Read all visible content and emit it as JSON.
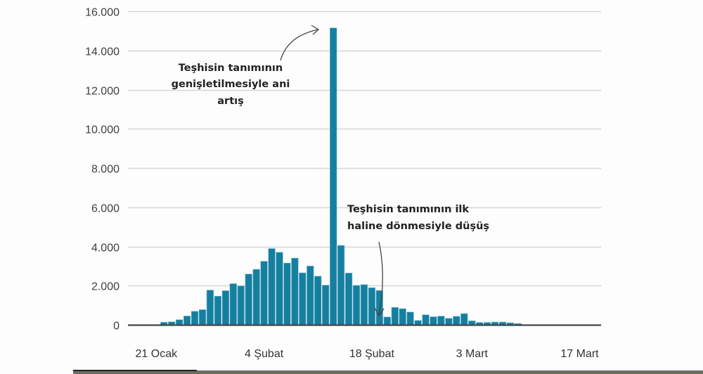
{
  "chart_data": {
    "type": "bar",
    "title": "",
    "xlabel": "",
    "ylabel": "",
    "ylim": [
      0,
      16000
    ],
    "y_ticks": [
      "0",
      "2.000",
      "4.000",
      "6.000",
      "8.000",
      "10.000",
      "12.000",
      "14.000",
      "16.000"
    ],
    "y_tick_values": [
      0,
      2000,
      4000,
      6000,
      8000,
      10000,
      12000,
      14000,
      16000
    ],
    "x_tick_labels": [
      "21 Ocak",
      "4 Şubat",
      "18 Şubat",
      "3 Mart",
      "17 Mart"
    ],
    "x_tick_day_index": [
      0,
      14,
      28,
      41,
      55
    ],
    "grid": true,
    "bar_color": "#157fa0",
    "start_date_label": "21 Ocak",
    "values": [
      0,
      130,
      150,
      260,
      450,
      690,
      770,
      1770,
      1460,
      1740,
      2100,
      1980,
      2590,
      2830,
      3240,
      3890,
      3700,
      3150,
      3400,
      2650,
      3000,
      2480,
      2020,
      15150,
      4050,
      2640,
      2010,
      2050,
      1890,
      1750,
      400,
      890,
      820,
      650,
      220,
      510,
      410,
      440,
      330,
      430,
      570,
      200,
      120,
      120,
      140,
      140,
      100,
      60,
      0,
      0,
      0,
      0,
      0,
      0,
      0,
      0,
      0,
      0
    ],
    "annotations": [
      {
        "lines": [
          "Teşhisin tanımının",
          "genişletilmesiyle ani",
          "artış"
        ],
        "points_to_day": 23
      },
      {
        "lines": [
          "Teşhisin tanımının ilk",
          "haline dönmesiyle düşüş"
        ],
        "points_to_day": 30
      }
    ]
  },
  "axis": {
    "y": [
      "0",
      "2.000",
      "4.000",
      "6.000",
      "8.000",
      "10.000",
      "12.000",
      "14.000",
      "16.000"
    ],
    "x": [
      "21 Ocak",
      "4 Şubat",
      "18 Şubat",
      "3 Mart",
      "17 Mart"
    ]
  },
  "annotations": {
    "spike": {
      "line1": "Teşhisin tanımının",
      "line2": "genişletilmesiyle ani",
      "line3": "artış"
    },
    "drop": {
      "line1": "Teşhisin tanımının ilk",
      "line2": "haline dönmesiyle düşüş"
    }
  }
}
